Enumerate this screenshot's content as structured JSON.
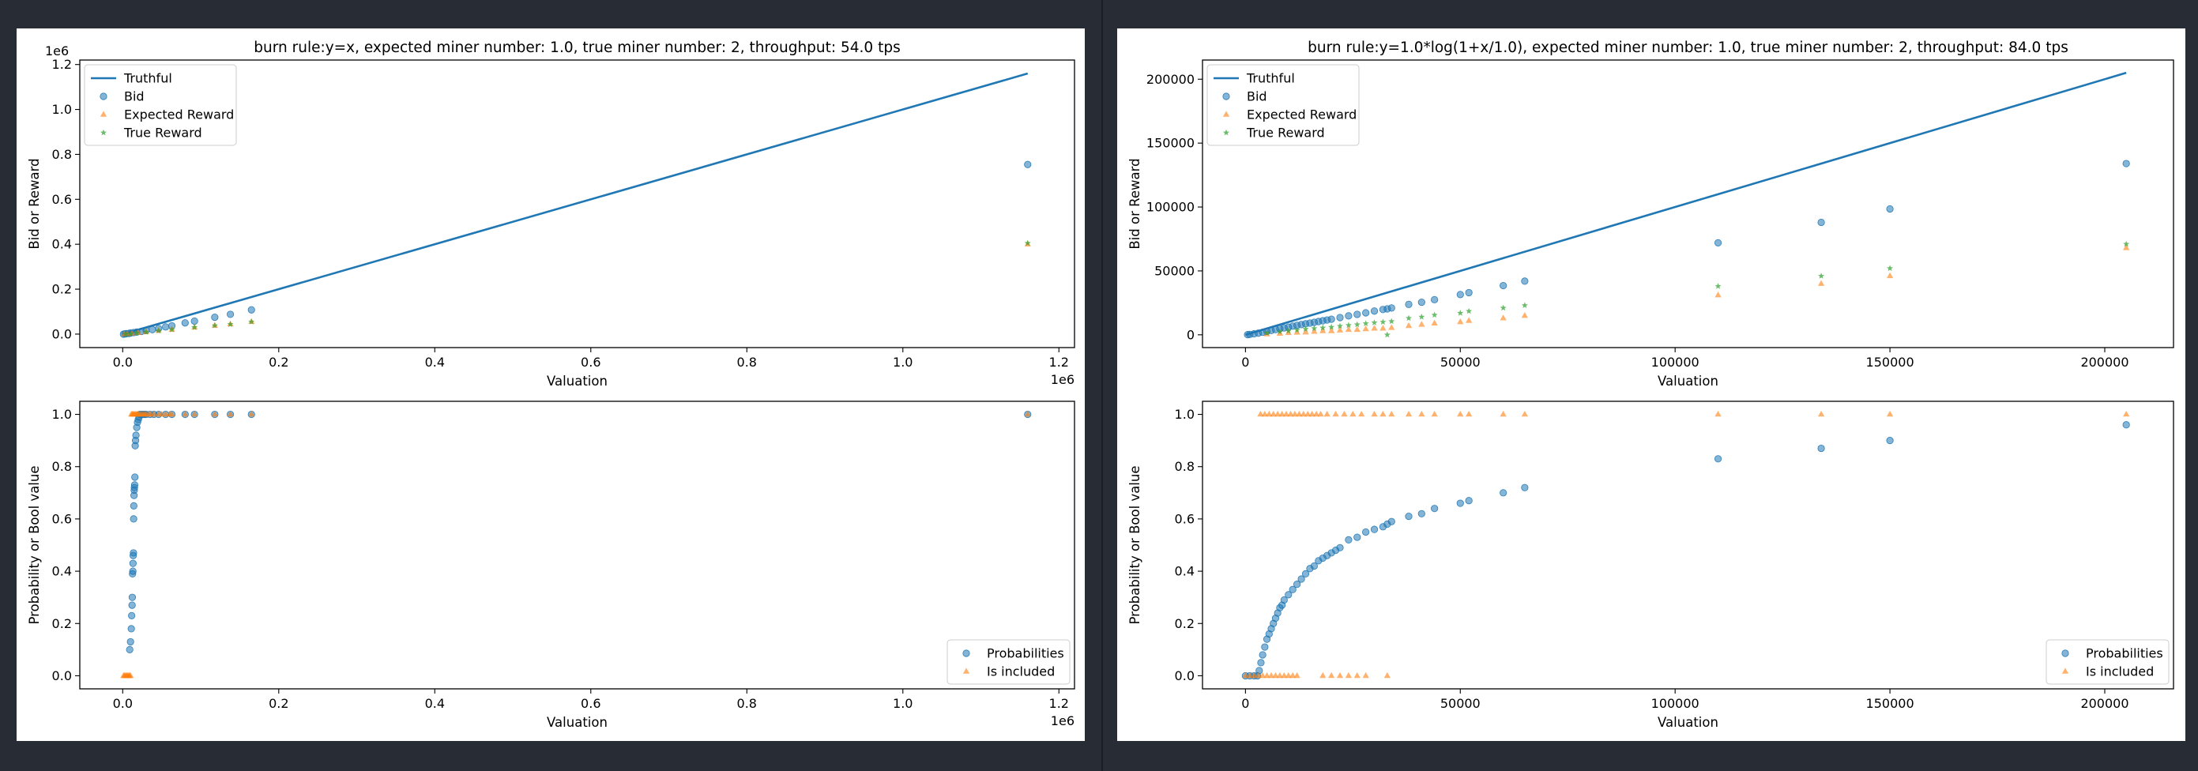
{
  "colors": {
    "truthful": "#1f77b4",
    "bid": "#1f77b4",
    "expected_reward": "#ff7f0e",
    "true_reward": "#2ca02c",
    "probabilities": "#1f77b4",
    "is_included": "#ff7f0e",
    "page_background": "#282c34",
    "figure_background": "#ffffff"
  },
  "chart_data": [
    {
      "type": "scatter",
      "id": "left-top",
      "title": "burn rule:y=x, expected miner number: 1.0, true miner number: 2, throughput: 54.0 tps",
      "xlabel": "Valuation",
      "ylabel": "Bid or Reward",
      "xlim": [
        -55000,
        1220000
      ],
      "ylim": [
        -60000,
        1220000
      ],
      "x_offset_text": "1e6",
      "y_offset_text": "1e6",
      "x_ticks": [
        0,
        200000,
        400000,
        600000,
        800000,
        1000000,
        1200000
      ],
      "x_tick_labels": [
        "0.0",
        "0.2",
        "0.4",
        "0.6",
        "0.8",
        "1.0",
        "1.2"
      ],
      "y_ticks": [
        0,
        200000,
        400000,
        600000,
        800000,
        1000000,
        1200000
      ],
      "y_tick_labels": [
        "0.0",
        "0.2",
        "0.4",
        "0.6",
        "0.8",
        "1.0",
        "1.2"
      ],
      "legend_position": "upper-left",
      "legend": [
        "Truthful",
        "Bid",
        "Expected Reward",
        "True Reward"
      ],
      "series": [
        {
          "name": "Truthful",
          "kind": "line",
          "x": [
            0,
            1160000
          ],
          "y": [
            0,
            1160000
          ]
        },
        {
          "name": "Bid",
          "kind": "circle",
          "x": [
            1000,
            3000,
            5000,
            8000,
            10000,
            14000,
            18000,
            24000,
            30000,
            38000,
            46000,
            55000,
            63000,
            80000,
            92000,
            118000,
            138000,
            165000,
            1160000
          ],
          "y": [
            0,
            1000,
            2000,
            3000,
            5000,
            7000,
            9000,
            12000,
            16000,
            20000,
            25000,
            32000,
            37000,
            50000,
            58000,
            75000,
            88000,
            108000,
            755000
          ]
        },
        {
          "name": "Expected Reward",
          "kind": "triangle",
          "x": [
            2000,
            6000,
            12000,
            20000,
            30000,
            46000,
            63000,
            92000,
            118000,
            138000,
            165000,
            1160000
          ],
          "y": [
            0,
            1000,
            3000,
            6000,
            10000,
            15000,
            20000,
            30000,
            38000,
            44000,
            55000,
            400000
          ]
        },
        {
          "name": "True Reward",
          "kind": "star",
          "x": [
            4000,
            10000,
            18000,
            30000,
            46000,
            63000,
            92000,
            118000,
            138000,
            165000,
            1160000
          ],
          "y": [
            0,
            2000,
            5000,
            9000,
            15000,
            20000,
            30000,
            38000,
            44000,
            55000,
            405000
          ]
        }
      ]
    },
    {
      "type": "scatter",
      "id": "left-bottom",
      "title": "",
      "xlabel": "Valuation",
      "ylabel": "Probability or Bool value",
      "xlim": [
        -55000,
        1220000
      ],
      "ylim": [
        -0.05,
        1.05
      ],
      "x_offset_text": "1e6",
      "x_ticks": [
        0,
        200000,
        400000,
        600000,
        800000,
        1000000,
        1200000
      ],
      "x_tick_labels": [
        "0.0",
        "0.2",
        "0.4",
        "0.6",
        "0.8",
        "1.0",
        "1.2"
      ],
      "y_ticks": [
        0,
        0.2,
        0.4,
        0.6,
        0.8,
        1.0
      ],
      "y_tick_labels": [
        "0.0",
        "0.2",
        "0.4",
        "0.6",
        "0.8",
        "1.0"
      ],
      "legend_position": "lower-right",
      "legend": [
        "Probabilities",
        "Is included"
      ],
      "series": [
        {
          "name": "Probabilities",
          "kind": "circle",
          "x": [
            9000,
            10000,
            11000,
            11500,
            12000,
            12300,
            12600,
            13000,
            13200,
            13500,
            13800,
            14000,
            14200,
            14500,
            14800,
            15000,
            15300,
            15600,
            16000,
            16500,
            17000,
            18000,
            19000,
            20000,
            21000,
            22000,
            24000,
            26000,
            28000,
            30000,
            35000,
            40000,
            46000,
            55000,
            63000,
            80000,
            92000,
            118000,
            138000,
            165000,
            1160000
          ],
          "y": [
            0.1,
            0.13,
            0.18,
            0.23,
            0.27,
            0.3,
            0.39,
            0.4,
            0.43,
            0.46,
            0.47,
            0.6,
            0.65,
            0.69,
            0.71,
            0.72,
            0.73,
            0.76,
            0.88,
            0.9,
            0.92,
            0.95,
            0.97,
            0.98,
            0.99,
            1.0,
            1.0,
            1.0,
            1.0,
            1.0,
            1.0,
            1.0,
            1.0,
            1.0,
            1.0,
            1.0,
            1.0,
            1.0,
            1.0,
            1.0,
            1.0
          ]
        },
        {
          "name": "Is included",
          "kind": "triangle",
          "x": [
            1000,
            2000,
            3000,
            4000,
            5000,
            6000,
            7000,
            8000,
            9000,
            10000,
            11000,
            12000,
            13000,
            14000,
            15000,
            16000,
            17000,
            18000,
            19000,
            20000,
            22000,
            24000,
            26000,
            28000,
            30000,
            33000,
            36000,
            40000,
            46000,
            50000,
            55000,
            60000,
            63000,
            80000,
            92000,
            118000,
            138000,
            165000,
            1160000
          ],
          "y": [
            0,
            0,
            0,
            0,
            0,
            0,
            0,
            0,
            0,
            0,
            1,
            1,
            1,
            1,
            1,
            1,
            1,
            1,
            1,
            1,
            1,
            1,
            1,
            1,
            1,
            1,
            1,
            1,
            1,
            1,
            1,
            1,
            1,
            1,
            1,
            1,
            1,
            1,
            1
          ]
        }
      ]
    },
    {
      "type": "scatter",
      "id": "right-top",
      "title": "burn rule:y=1.0*log(1+x/1.0), expected miner number: 1.0, true miner number: 2, throughput: 84.0 tps",
      "xlabel": "Valuation",
      "ylabel": "Bid or Reward",
      "xlim": [
        -10000,
        216000
      ],
      "ylim": [
        -10000,
        215000
      ],
      "x_ticks": [
        0,
        50000,
        100000,
        150000,
        200000
      ],
      "x_tick_labels": [
        "0",
        "50000",
        "100000",
        "150000",
        "200000"
      ],
      "y_ticks": [
        0,
        50000,
        100000,
        150000,
        200000
      ],
      "y_tick_labels": [
        "0",
        "50000",
        "100000",
        "150000",
        "200000"
      ],
      "legend_position": "upper-left",
      "legend": [
        "Truthful",
        "Bid",
        "Expected Reward",
        "True Reward"
      ],
      "series": [
        {
          "name": "Truthful",
          "kind": "line",
          "x": [
            0,
            205000
          ],
          "y": [
            0,
            205000
          ]
        },
        {
          "name": "Bid",
          "kind": "circle",
          "x": [
            500,
            1000,
            2000,
            3000,
            4000,
            5000,
            6000,
            7000,
            8000,
            9000,
            10000,
            11000,
            12000,
            13000,
            14000,
            15000,
            16000,
            17000,
            18000,
            19000,
            20000,
            22000,
            24000,
            26000,
            28000,
            30000,
            32000,
            33000,
            34000,
            38000,
            41000,
            44000,
            50000,
            52000,
            60000,
            65000,
            110000,
            134000,
            150000,
            205000
          ],
          "y": [
            100,
            300,
            800,
            1300,
            2000,
            2700,
            3400,
            4100,
            4800,
            5400,
            6000,
            6800,
            7400,
            8000,
            8600,
            9200,
            9800,
            10400,
            11000,
            11600,
            12200,
            13500,
            14800,
            16000,
            17200,
            18600,
            19800,
            20300,
            21000,
            23800,
            25500,
            27500,
            31500,
            33000,
            38500,
            42000,
            72000,
            88000,
            98500,
            134000
          ]
        },
        {
          "name": "Expected Reward",
          "kind": "triangle",
          "x": [
            5000,
            8000,
            10000,
            12000,
            14000,
            16000,
            18000,
            20000,
            22000,
            24000,
            26000,
            28000,
            30000,
            32000,
            34000,
            38000,
            41000,
            44000,
            50000,
            52000,
            60000,
            65000,
            110000,
            134000,
            150000,
            205000
          ],
          "y": [
            500,
            1000,
            1500,
            1800,
            2000,
            2500,
            3000,
            3000,
            3500,
            4000,
            4000,
            4500,
            5000,
            5000,
            5500,
            7000,
            8000,
            9000,
            10000,
            11000,
            13000,
            15000,
            31000,
            40000,
            46000,
            68000
          ]
        },
        {
          "name": "True Reward",
          "kind": "star",
          "x": [
            5000,
            8000,
            10000,
            12000,
            14000,
            16000,
            18000,
            20000,
            22000,
            24000,
            26000,
            28000,
            30000,
            32000,
            33000,
            34000,
            38000,
            41000,
            44000,
            50000,
            52000,
            60000,
            65000,
            110000,
            134000,
            150000,
            205000
          ],
          "y": [
            1500,
            2500,
            3000,
            3800,
            4500,
            5000,
            5500,
            6000,
            6800,
            7500,
            8000,
            8800,
            9500,
            10000,
            0,
            10500,
            13000,
            14000,
            15500,
            17000,
            18500,
            21000,
            23000,
            38000,
            46000,
            52000,
            71000
          ]
        }
      ]
    },
    {
      "type": "scatter",
      "id": "right-bottom",
      "title": "",
      "xlabel": "Valuation",
      "ylabel": "Probability or Bool value",
      "xlim": [
        -10000,
        216000
      ],
      "ylim": [
        -0.05,
        1.05
      ],
      "x_ticks": [
        0,
        50000,
        100000,
        150000,
        200000
      ],
      "x_tick_labels": [
        "0",
        "50000",
        "100000",
        "150000",
        "200000"
      ],
      "y_ticks": [
        0,
        0.2,
        0.4,
        0.6,
        0.8,
        1.0
      ],
      "y_tick_labels": [
        "0.0",
        "0.2",
        "0.4",
        "0.6",
        "0.8",
        "1.0"
      ],
      "legend_position": "lower-right",
      "legend": [
        "Probabilities",
        "Is included"
      ],
      "series": [
        {
          "name": "Probabilities",
          "kind": "circle",
          "x": [
            0,
            1000,
            2000,
            2800,
            3200,
            3600,
            4000,
            4500,
            5000,
            5500,
            6000,
            6500,
            7000,
            7500,
            8000,
            8500,
            9000,
            10000,
            11000,
            12000,
            13000,
            14000,
            15000,
            16000,
            17000,
            18000,
            19000,
            20000,
            21000,
            22000,
            24000,
            26000,
            28000,
            30000,
            32000,
            33000,
            34000,
            38000,
            41000,
            44000,
            50000,
            52000,
            60000,
            65000,
            110000,
            134000,
            150000,
            205000
          ],
          "y": [
            0,
            0,
            0,
            0,
            0.02,
            0.05,
            0.08,
            0.11,
            0.14,
            0.16,
            0.18,
            0.2,
            0.22,
            0.24,
            0.26,
            0.27,
            0.29,
            0.31,
            0.33,
            0.35,
            0.37,
            0.39,
            0.41,
            0.42,
            0.44,
            0.45,
            0.46,
            0.47,
            0.48,
            0.49,
            0.52,
            0.53,
            0.55,
            0.56,
            0.57,
            0.58,
            0.59,
            0.61,
            0.62,
            0.64,
            0.66,
            0.67,
            0.7,
            0.72,
            0.83,
            0.87,
            0.9,
            0.96
          ]
        },
        {
          "name": "Is included",
          "kind": "triangle",
          "x": [
            0,
            1000,
            2000,
            3000,
            4000,
            5000,
            6000,
            7000,
            8000,
            9000,
            10000,
            11000,
            12000,
            18000,
            20000,
            22000,
            24000,
            26000,
            28000,
            33000,
            3500,
            4500,
            5500,
            6500,
            7500,
            8500,
            9500,
            10500,
            11500,
            12500,
            13500,
            14500,
            15500,
            16500,
            17500,
            19000,
            21000,
            23000,
            25000,
            27000,
            30000,
            32000,
            34000,
            38000,
            41000,
            44000,
            50000,
            52000,
            60000,
            65000,
            110000,
            134000,
            150000,
            205000
          ],
          "y": [
            0,
            0,
            0,
            0,
            0,
            0,
            0,
            0,
            0,
            0,
            0,
            0,
            0,
            0,
            0,
            0,
            0,
            0,
            0,
            0,
            1,
            1,
            1,
            1,
            1,
            1,
            1,
            1,
            1,
            1,
            1,
            1,
            1,
            1,
            1,
            1,
            1,
            1,
            1,
            1,
            1,
            1,
            1,
            1,
            1,
            1,
            1,
            1,
            1,
            1,
            1,
            1,
            1,
            1
          ]
        }
      ]
    }
  ]
}
